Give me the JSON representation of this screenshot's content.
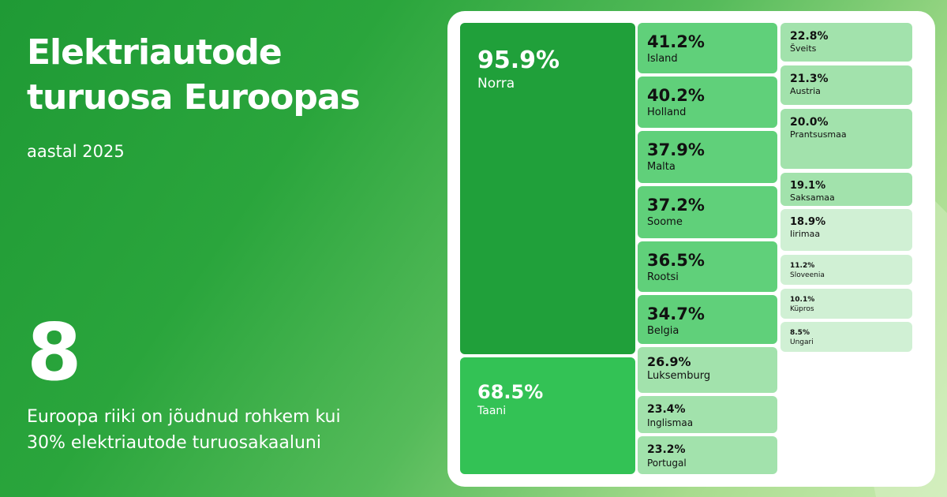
{
  "header": {
    "title_line1": "Elektriautode",
    "title_line2": "turuosa Euroopas",
    "subtitle": "aastal 2025"
  },
  "highlight": {
    "number": "8",
    "caption_line1": "Euroopa riiki on jõudnud rohkem kui",
    "caption_line2": "30% elektriautode turuosakaaluni"
  },
  "colors": {
    "background": "#2aa53c",
    "tile_dark": "#20a03a",
    "tile_mid": "#33c255",
    "tile_light": "#60d07a",
    "tile_pale": "#a2e2ac",
    "tile_faint": "#d0f0d4"
  },
  "chart_data": {
    "type": "treemap",
    "unit": "%",
    "items": [
      {
        "name": "Norra",
        "value": 95.9,
        "label": "95.9%"
      },
      {
        "name": "Taani",
        "value": 68.5,
        "label": "68.5%"
      },
      {
        "name": "Island",
        "value": 41.2,
        "label": "41.2%"
      },
      {
        "name": "Holland",
        "value": 40.2,
        "label": "40.2%"
      },
      {
        "name": "Malta",
        "value": 37.9,
        "label": "37.9%"
      },
      {
        "name": "Soome",
        "value": 37.2,
        "label": "37.2%"
      },
      {
        "name": "Rootsi",
        "value": 36.5,
        "label": "36.5%"
      },
      {
        "name": "Belgia",
        "value": 34.7,
        "label": "34.7%"
      },
      {
        "name": "Luksemburg",
        "value": 26.9,
        "label": "26.9%"
      },
      {
        "name": "Inglismaa",
        "value": 23.4,
        "label": "23.4%"
      },
      {
        "name": "Portugal",
        "value": 23.2,
        "label": "23.2%"
      },
      {
        "name": "Šveits",
        "value": 22.8,
        "label": "22.8%"
      },
      {
        "name": "Austria",
        "value": 21.3,
        "label": "21.3%"
      },
      {
        "name": "Prantsusmaa",
        "value": 20.0,
        "label": "20.0%"
      },
      {
        "name": "Saksamaa",
        "value": 19.1,
        "label": "19.1%"
      },
      {
        "name": "Iirimaa",
        "value": 18.9,
        "label": "18.9%"
      },
      {
        "name": "Sloveenia",
        "value": 11.2,
        "label": "11.2%"
      },
      {
        "name": "Küpros",
        "value": 10.1,
        "label": "10.1%"
      },
      {
        "name": "Ungari",
        "value": 8.5,
        "label": "8.5%"
      }
    ]
  }
}
